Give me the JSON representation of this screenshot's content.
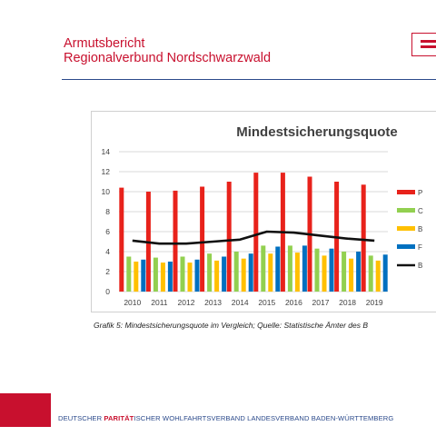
{
  "header": {
    "line1": "Armutsbericht",
    "line2": "Regionalverbund Nordschwarzwald"
  },
  "caption": "Grafik 5: Mindestsicherungsquote im Vergleich; Quelle: Statistische Ämter des B",
  "footer": {
    "part1": "DEUTSCHER ",
    "part2": "PARITÄT",
    "part3": "ISCHER WOHLFAHRTSVERBAND LANDESVERBAND BADEN-WÜRTTEMBERG"
  },
  "colors": {
    "brand_red": "#c8102e",
    "brand_blue": "#2b4a8b"
  },
  "chart_data": {
    "type": "bar",
    "title": "Mindestsicherungsquote",
    "categories": [
      "2010",
      "2011",
      "2012",
      "2013",
      "2014",
      "2015",
      "2016",
      "2017",
      "2018",
      "2019"
    ],
    "ylim": [
      0,
      14
    ],
    "yticks": [
      0,
      2,
      4,
      6,
      8,
      10,
      12,
      14
    ],
    "grid": true,
    "legend_position": "right",
    "series": [
      {
        "name": "P",
        "type": "bar",
        "color": "#e8221b",
        "values": [
          10.4,
          10.0,
          10.1,
          10.5,
          11.0,
          11.9,
          11.9,
          11.5,
          11.0,
          10.7
        ]
      },
      {
        "name": "C",
        "type": "bar",
        "color": "#92d050",
        "values": [
          3.5,
          3.4,
          3.5,
          3.8,
          4.0,
          4.6,
          4.6,
          4.3,
          4.0,
          3.6
        ]
      },
      {
        "name": "B",
        "type": "bar",
        "color": "#ffc000",
        "values": [
          3.0,
          2.9,
          2.9,
          3.1,
          3.3,
          3.8,
          3.9,
          3.6,
          3.3,
          3.1
        ]
      },
      {
        "name": "F",
        "type": "bar",
        "color": "#0070c0",
        "values": [
          3.2,
          3.0,
          3.2,
          3.5,
          3.8,
          4.5,
          4.6,
          4.3,
          4.0,
          3.7
        ]
      },
      {
        "name": "B",
        "type": "line",
        "color": "#111111",
        "values": [
          5.1,
          4.8,
          4.8,
          5.0,
          5.2,
          6.0,
          5.9,
          5.6,
          5.3,
          5.1
        ]
      }
    ]
  }
}
